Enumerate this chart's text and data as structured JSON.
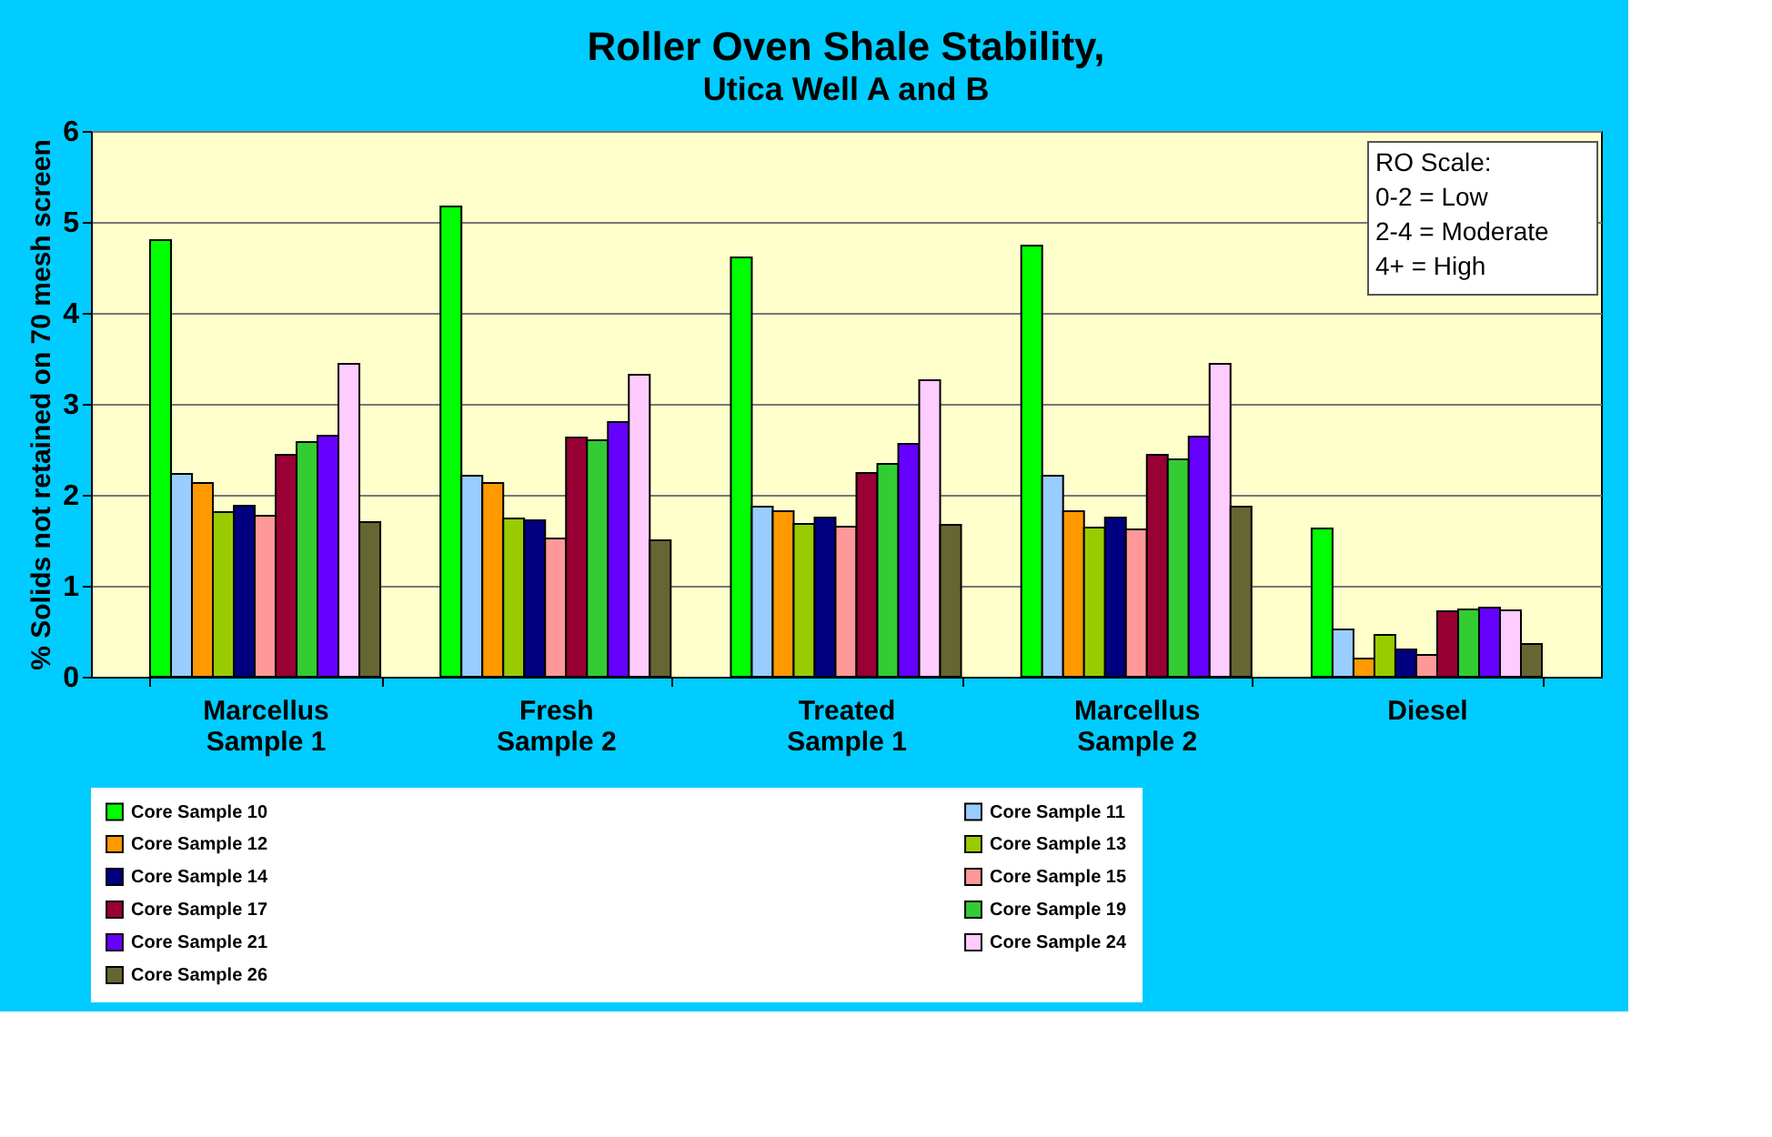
{
  "chart_data": {
    "type": "bar",
    "title": "Roller Oven Shale Stability,",
    "subtitle": "Utica Well A and B",
    "ylabel": "% Solids not retained on 70 mesh screen",
    "categories": [
      "Marcellus Sample 1",
      "Fresh Sample 2",
      "Treated Sample 1",
      "Marcellus Sample 2",
      "Diesel"
    ],
    "series": [
      {
        "name": "Core Sample 10",
        "color": "#00ff00",
        "values": [
          4.8,
          5.17,
          4.61,
          4.74,
          1.63
        ]
      },
      {
        "name": "Core Sample 11",
        "color": "#99ccff",
        "values": [
          2.23,
          2.21,
          1.87,
          2.21,
          0.52
        ]
      },
      {
        "name": "Core Sample 12",
        "color": "#ff9900",
        "values": [
          2.13,
          2.13,
          1.82,
          1.82,
          0.2
        ]
      },
      {
        "name": "Core Sample 13",
        "color": "#99cc00",
        "values": [
          1.81,
          1.74,
          1.68,
          1.64,
          0.46
        ]
      },
      {
        "name": "Core Sample 14",
        "color": "#000080",
        "values": [
          1.88,
          1.72,
          1.75,
          1.75,
          0.3
        ]
      },
      {
        "name": "Core Sample 15",
        "color": "#ff9999",
        "values": [
          1.77,
          1.52,
          1.65,
          1.62,
          0.24
        ]
      },
      {
        "name": "Core Sample 17",
        "color": "#990033",
        "values": [
          2.44,
          2.63,
          2.24,
          2.44,
          0.72
        ]
      },
      {
        "name": "Core Sample 19",
        "color": "#33cc33",
        "values": [
          2.58,
          2.6,
          2.34,
          2.39,
          0.74
        ]
      },
      {
        "name": "Core Sample 21",
        "color": "#6600ff",
        "values": [
          2.65,
          2.8,
          2.56,
          2.64,
          0.76
        ]
      },
      {
        "name": "Core Sample 24",
        "color": "#ffccff",
        "values": [
          3.44,
          3.32,
          3.26,
          3.44,
          0.73
        ]
      },
      {
        "name": "Core Sample 26",
        "color": "#666633",
        "values": [
          1.7,
          1.5,
          1.67,
          1.87,
          0.36
        ]
      }
    ],
    "ylim": [
      0,
      6
    ],
    "yticks": [
      0,
      1,
      2,
      3,
      4,
      5,
      6
    ],
    "grid": "y",
    "legend": "bottom",
    "annotations": [
      "RO Scale:",
      "0-2 = Low",
      "2-4 = Moderate",
      "4+  = High"
    ]
  }
}
